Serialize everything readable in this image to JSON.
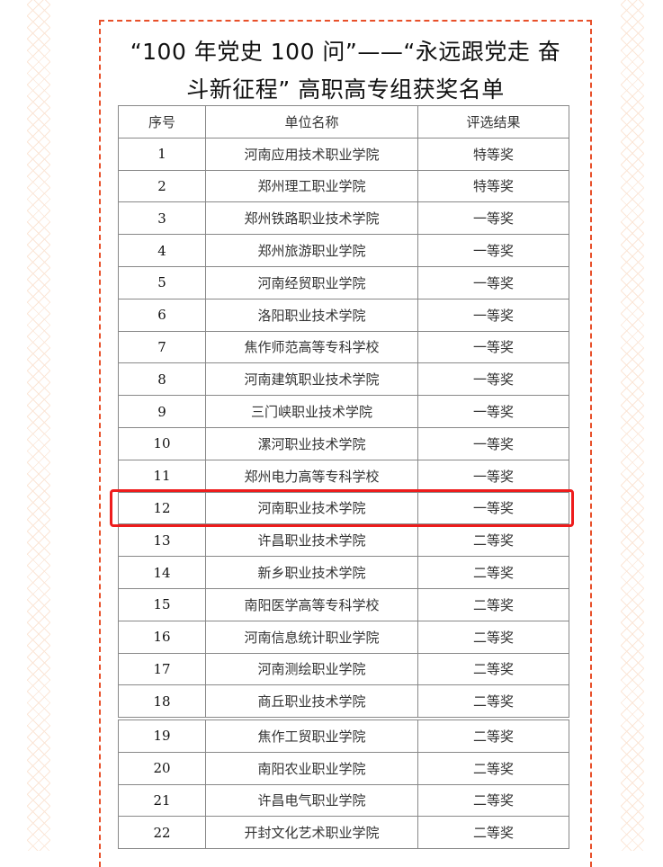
{
  "title": {
    "line1": "“100 年党史 100 问”——“永远跟党走 奋",
    "line2": "斗新征程” 高职高专组获奖名单"
  },
  "table": {
    "headers": [
      "序号",
      "单位名称",
      "评选结果"
    ],
    "rows": [
      [
        "1",
        "河南应用技术职业学院",
        "特等奖"
      ],
      [
        "2",
        "郑州理工职业学院",
        "特等奖"
      ],
      [
        "3",
        "郑州铁路职业技术学院",
        "一等奖"
      ],
      [
        "4",
        "郑州旅游职业学院",
        "一等奖"
      ],
      [
        "5",
        "河南经贸职业学院",
        "一等奖"
      ],
      [
        "6",
        "洛阳职业技术学院",
        "一等奖"
      ],
      [
        "7",
        "焦作师范高等专科学校",
        "一等奖"
      ],
      [
        "8",
        "河南建筑职业技术学院",
        "一等奖"
      ],
      [
        "9",
        "三门峡职业技术学院",
        "一等奖"
      ],
      [
        "10",
        "漯河职业技术学院",
        "一等奖"
      ],
      [
        "11",
        "郑州电力高等专科学校",
        "一等奖"
      ],
      [
        "12",
        "河南职业技术学院",
        "一等奖"
      ],
      [
        "13",
        "许昌职业技术学院",
        "二等奖"
      ],
      [
        "14",
        "新乡职业技术学院",
        "二等奖"
      ],
      [
        "15",
        "南阳医学高等专科学校",
        "二等奖"
      ],
      [
        "16",
        "河南信息统计职业学院",
        "二等奖"
      ],
      [
        "17",
        "河南测绘职业学院",
        "二等奖"
      ],
      [
        "18",
        "商丘职业技术学院",
        "二等奖"
      ]
    ],
    "rows2": [
      [
        "19",
        "焦作工贸职业学院",
        "二等奖"
      ],
      [
        "20",
        "南阳农业职业学院",
        "二等奖"
      ],
      [
        "21",
        "许昌电气职业学院",
        "二等奖"
      ],
      [
        "22",
        "开封文化艺术职业学院",
        "二等奖"
      ]
    ]
  },
  "highlight": {
    "row": "12",
    "color": "#ee1c1c"
  },
  "colors": {
    "frame": "#e8502a"
  }
}
